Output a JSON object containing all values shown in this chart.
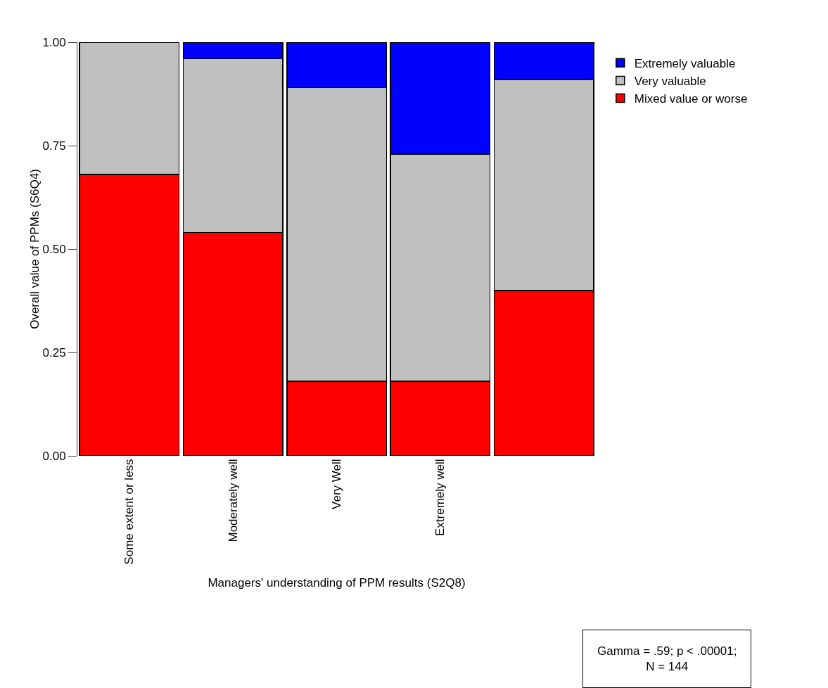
{
  "chart_data": {
    "type": "bar",
    "stacked": true,
    "xlabel": "Managers' understanding of PPM results (S2Q8)",
    "ylabel": "Overall value of PPMs (S6Q4)",
    "categories": [
      "Some extent or less",
      "Moderately well",
      "Very Well",
      "Extremely well",
      null
    ],
    "series": [
      {
        "name": "Mixed value or worse",
        "color": "#ff0000",
        "values": [
          0.68,
          0.54,
          0.18,
          0.18,
          0.4
        ]
      },
      {
        "name": "Very valuable",
        "color": "#c0c0c0",
        "values": [
          0.32,
          0.42,
          0.71,
          0.55,
          0.51
        ]
      },
      {
        "name": "Extremely valuable",
        "color": "#0000ff",
        "values": [
          null,
          0.04,
          0.11,
          0.27,
          0.09
        ]
      }
    ],
    "ylim": [
      0,
      1
    ],
    "yticks": [
      {
        "value": 0,
        "label": "0.00"
      },
      {
        "value": 0.25,
        "label": "0.25"
      },
      {
        "value": 0.5,
        "label": "0.50"
      },
      {
        "value": 0.75,
        "label": "0.75"
      },
      {
        "value": 1,
        "label": "1.00"
      }
    ],
    "grid": false,
    "legend": "right",
    "annotations": [
      "Gamma = .59; p < .00001;\nN = 144"
    ]
  }
}
